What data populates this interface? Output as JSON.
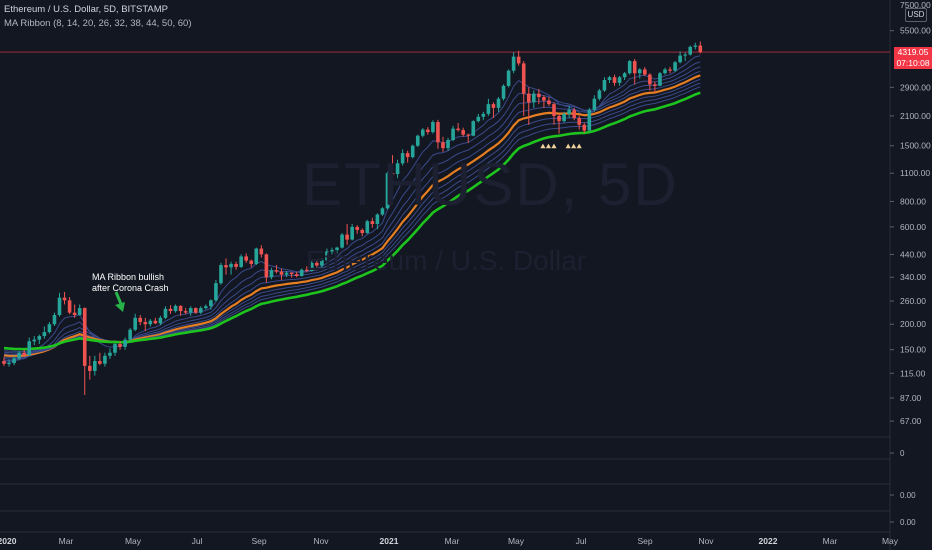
{
  "header": {
    "symbol_line": "Ethereum / U.S. Dollar, 5D, BITSTAMP",
    "indicator_line": "MA Ribbon (8, 14, 20, 26, 32, 38, 44, 50, 60)"
  },
  "currency": "USD",
  "watermark": {
    "ticker": "ETHUSD, 5D",
    "name": "Ethereum / U.S. Dollar"
  },
  "annotation": {
    "line1": "MA Ribbon bullish",
    "line2": "after Corona Crash"
  },
  "last_price": {
    "value": "4319.05",
    "countdown": "07:10:08"
  },
  "colors": {
    "background": "#131722",
    "up": "#26a69a",
    "down": "#ef5350",
    "ribbon_thin": "#3a4a8a",
    "ribbon_orange": "#e67e22",
    "ribbon_green": "#1ec41e",
    "signal_marker": "#f0d39a"
  },
  "chart_data": {
    "type": "candlestick",
    "y_scale": "log",
    "ylim": [
      56,
      7600
    ],
    "y_ticks": [
      "5500.00",
      "4319.05",
      "2900.00",
      "2100.00",
      "1500.00",
      "1100.00",
      "800.00",
      "600.00",
      "440.00",
      "340.00",
      "260.00",
      "200.00",
      "150.00",
      "115.00",
      "87.00",
      "67.00"
    ],
    "y_top_label": "7500.00",
    "x_ticks": [
      "2020",
      "Mar",
      "May",
      "Jul",
      "Sep",
      "Nov",
      "2021",
      "Mar",
      "May",
      "Jul",
      "Sep",
      "Nov",
      "2022",
      "Mar",
      "May"
    ],
    "candles": [
      {
        "date": "2019-12-20",
        "o": 132,
        "h": 138,
        "l": 125,
        "c": 128
      },
      {
        "date": "2019-12-25",
        "o": 128,
        "h": 134,
        "l": 124,
        "c": 129
      },
      {
        "date": "2019-12-30",
        "o": 129,
        "h": 140,
        "l": 126,
        "c": 136
      },
      {
        "date": "2020-01-04",
        "o": 136,
        "h": 148,
        "l": 133,
        "c": 145
      },
      {
        "date": "2020-01-09",
        "o": 145,
        "h": 150,
        "l": 138,
        "c": 141
      },
      {
        "date": "2020-01-14",
        "o": 141,
        "h": 172,
        "l": 140,
        "c": 165
      },
      {
        "date": "2020-01-19",
        "o": 165,
        "h": 175,
        "l": 158,
        "c": 168
      },
      {
        "date": "2020-01-24",
        "o": 168,
        "h": 178,
        "l": 160,
        "c": 175
      },
      {
        "date": "2020-01-29",
        "o": 175,
        "h": 195,
        "l": 170,
        "c": 183
      },
      {
        "date": "2020-02-03",
        "o": 183,
        "h": 205,
        "l": 180,
        "c": 200
      },
      {
        "date": "2020-02-08",
        "o": 200,
        "h": 228,
        "l": 196,
        "c": 222
      },
      {
        "date": "2020-02-13",
        "o": 222,
        "h": 285,
        "l": 218,
        "c": 270
      },
      {
        "date": "2020-02-18",
        "o": 270,
        "h": 288,
        "l": 250,
        "c": 262
      },
      {
        "date": "2020-02-23",
        "o": 262,
        "h": 272,
        "l": 224,
        "c": 228
      },
      {
        "date": "2020-02-28",
        "o": 228,
        "h": 250,
        "l": 215,
        "c": 222
      },
      {
        "date": "2020-03-04",
        "o": 222,
        "h": 250,
        "l": 220,
        "c": 240
      },
      {
        "date": "2020-03-09",
        "o": 240,
        "h": 242,
        "l": 90,
        "c": 125
      },
      {
        "date": "2020-03-14",
        "o": 125,
        "h": 140,
        "l": 107,
        "c": 118
      },
      {
        "date": "2020-03-19",
        "o": 118,
        "h": 140,
        "l": 112,
        "c": 132
      },
      {
        "date": "2020-03-24",
        "o": 132,
        "h": 145,
        "l": 126,
        "c": 128
      },
      {
        "date": "2020-03-29",
        "o": 128,
        "h": 145,
        "l": 124,
        "c": 140
      },
      {
        "date": "2020-04-03",
        "o": 140,
        "h": 152,
        "l": 135,
        "c": 145
      },
      {
        "date": "2020-04-08",
        "o": 145,
        "h": 162,
        "l": 140,
        "c": 160
      },
      {
        "date": "2020-04-13",
        "o": 160,
        "h": 165,
        "l": 150,
        "c": 155
      },
      {
        "date": "2020-04-18",
        "o": 155,
        "h": 172,
        "l": 150,
        "c": 168
      },
      {
        "date": "2020-04-23",
        "o": 168,
        "h": 192,
        "l": 165,
        "c": 188
      },
      {
        "date": "2020-04-28",
        "o": 188,
        "h": 225,
        "l": 185,
        "c": 215
      },
      {
        "date": "2020-05-03",
        "o": 215,
        "h": 222,
        "l": 198,
        "c": 205
      },
      {
        "date": "2020-05-08",
        "o": 205,
        "h": 215,
        "l": 185,
        "c": 200
      },
      {
        "date": "2020-05-13",
        "o": 200,
        "h": 212,
        "l": 195,
        "c": 208
      },
      {
        "date": "2020-05-18",
        "o": 208,
        "h": 215,
        "l": 200,
        "c": 202
      },
      {
        "date": "2020-05-23",
        "o": 202,
        "h": 220,
        "l": 198,
        "c": 215
      },
      {
        "date": "2020-05-28",
        "o": 215,
        "h": 245,
        "l": 212,
        "c": 238
      },
      {
        "date": "2020-06-02",
        "o": 238,
        "h": 248,
        "l": 225,
        "c": 232
      },
      {
        "date": "2020-06-07",
        "o": 232,
        "h": 250,
        "l": 228,
        "c": 246
      },
      {
        "date": "2020-06-12",
        "o": 246,
        "h": 248,
        "l": 220,
        "c": 232
      },
      {
        "date": "2020-06-17",
        "o": 232,
        "h": 240,
        "l": 224,
        "c": 228
      },
      {
        "date": "2020-06-22",
        "o": 228,
        "h": 245,
        "l": 220,
        "c": 240
      },
      {
        "date": "2020-06-27",
        "o": 240,
        "h": 242,
        "l": 225,
        "c": 228
      },
      {
        "date": "2020-07-02",
        "o": 228,
        "h": 245,
        "l": 224,
        "c": 240
      },
      {
        "date": "2020-07-07",
        "o": 240,
        "h": 250,
        "l": 236,
        "c": 245
      },
      {
        "date": "2020-07-12",
        "o": 245,
        "h": 265,
        "l": 236,
        "c": 262
      },
      {
        "date": "2020-07-17",
        "o": 262,
        "h": 330,
        "l": 258,
        "c": 318
      },
      {
        "date": "2020-07-22",
        "o": 318,
        "h": 400,
        "l": 312,
        "c": 390
      },
      {
        "date": "2020-07-27",
        "o": 390,
        "h": 420,
        "l": 350,
        "c": 380
      },
      {
        "date": "2020-08-01",
        "o": 380,
        "h": 405,
        "l": 350,
        "c": 395
      },
      {
        "date": "2020-08-06",
        "o": 395,
        "h": 405,
        "l": 370,
        "c": 382
      },
      {
        "date": "2020-08-11",
        "o": 382,
        "h": 440,
        "l": 378,
        "c": 430
      },
      {
        "date": "2020-08-16",
        "o": 430,
        "h": 445,
        "l": 400,
        "c": 410
      },
      {
        "date": "2020-08-21",
        "o": 410,
        "h": 415,
        "l": 380,
        "c": 395
      },
      {
        "date": "2020-08-26",
        "o": 395,
        "h": 475,
        "l": 390,
        "c": 470
      },
      {
        "date": "2020-08-31",
        "o": 470,
        "h": 488,
        "l": 425,
        "c": 440
      },
      {
        "date": "2020-09-05",
        "o": 440,
        "h": 445,
        "l": 320,
        "c": 340
      },
      {
        "date": "2020-09-10",
        "o": 340,
        "h": 378,
        "l": 332,
        "c": 368
      },
      {
        "date": "2020-09-15",
        "o": 368,
        "h": 390,
        "l": 355,
        "c": 362
      },
      {
        "date": "2020-09-20",
        "o": 362,
        "h": 375,
        "l": 330,
        "c": 350
      },
      {
        "date": "2020-09-25",
        "o": 350,
        "h": 365,
        "l": 340,
        "c": 358
      },
      {
        "date": "2020-09-30",
        "o": 358,
        "h": 360,
        "l": 338,
        "c": 352
      },
      {
        "date": "2020-10-05",
        "o": 352,
        "h": 362,
        "l": 340,
        "c": 345
      },
      {
        "date": "2020-10-10",
        "o": 345,
        "h": 375,
        "l": 342,
        "c": 370
      },
      {
        "date": "2020-10-15",
        "o": 370,
        "h": 385,
        "l": 360,
        "c": 365
      },
      {
        "date": "2020-10-20",
        "o": 365,
        "h": 410,
        "l": 362,
        "c": 400
      },
      {
        "date": "2020-10-25",
        "o": 400,
        "h": 415,
        "l": 380,
        "c": 388
      },
      {
        "date": "2020-10-30",
        "o": 388,
        "h": 420,
        "l": 375,
        "c": 412
      },
      {
        "date": "2020-11-04",
        "o": 412,
        "h": 470,
        "l": 405,
        "c": 455
      },
      {
        "date": "2020-11-09",
        "o": 455,
        "h": 475,
        "l": 440,
        "c": 462
      },
      {
        "date": "2020-11-14",
        "o": 462,
        "h": 480,
        "l": 445,
        "c": 475
      },
      {
        "date": "2020-11-19",
        "o": 475,
        "h": 560,
        "l": 470,
        "c": 550
      },
      {
        "date": "2020-11-24",
        "o": 550,
        "h": 620,
        "l": 490,
        "c": 520
      },
      {
        "date": "2020-11-29",
        "o": 520,
        "h": 620,
        "l": 515,
        "c": 600
      },
      {
        "date": "2020-12-04",
        "o": 600,
        "h": 612,
        "l": 555,
        "c": 580
      },
      {
        "date": "2020-12-09",
        "o": 580,
        "h": 590,
        "l": 540,
        "c": 560
      },
      {
        "date": "2020-12-14",
        "o": 560,
        "h": 650,
        "l": 555,
        "c": 640
      },
      {
        "date": "2020-12-19",
        "o": 640,
        "h": 665,
        "l": 595,
        "c": 620
      },
      {
        "date": "2020-12-24",
        "o": 620,
        "h": 700,
        "l": 585,
        "c": 690
      },
      {
        "date": "2020-12-29",
        "o": 690,
        "h": 750,
        "l": 680,
        "c": 740
      },
      {
        "date": "2021-01-03",
        "o": 740,
        "h": 1120,
        "l": 730,
        "c": 1100
      },
      {
        "date": "2021-01-08",
        "o": 1100,
        "h": 1350,
        "l": 1000,
        "c": 1090
      },
      {
        "date": "2021-01-13",
        "o": 1090,
        "h": 1280,
        "l": 1040,
        "c": 1230
      },
      {
        "date": "2021-01-18",
        "o": 1230,
        "h": 1440,
        "l": 1200,
        "c": 1380
      },
      {
        "date": "2021-01-23",
        "o": 1380,
        "h": 1420,
        "l": 1240,
        "c": 1320
      },
      {
        "date": "2021-01-28",
        "o": 1320,
        "h": 1520,
        "l": 1300,
        "c": 1500
      },
      {
        "date": "2021-02-02",
        "o": 1500,
        "h": 1700,
        "l": 1480,
        "c": 1680
      },
      {
        "date": "2021-02-07",
        "o": 1680,
        "h": 1830,
        "l": 1650,
        "c": 1800
      },
      {
        "date": "2021-02-12",
        "o": 1800,
        "h": 1850,
        "l": 1700,
        "c": 1750
      },
      {
        "date": "2021-02-17",
        "o": 1750,
        "h": 2000,
        "l": 1720,
        "c": 1960
      },
      {
        "date": "2021-02-22",
        "o": 1960,
        "h": 2010,
        "l": 1450,
        "c": 1560
      },
      {
        "date": "2021-02-27",
        "o": 1560,
        "h": 1660,
        "l": 1400,
        "c": 1460
      },
      {
        "date": "2021-03-04",
        "o": 1460,
        "h": 1640,
        "l": 1420,
        "c": 1600
      },
      {
        "date": "2021-03-09",
        "o": 1600,
        "h": 1880,
        "l": 1580,
        "c": 1820
      },
      {
        "date": "2021-03-14",
        "o": 1820,
        "h": 1940,
        "l": 1760,
        "c": 1790
      },
      {
        "date": "2021-03-19",
        "o": 1790,
        "h": 1840,
        "l": 1660,
        "c": 1700
      },
      {
        "date": "2021-03-24",
        "o": 1700,
        "h": 1720,
        "l": 1550,
        "c": 1680
      },
      {
        "date": "2021-03-29",
        "o": 1680,
        "h": 2000,
        "l": 1670,
        "c": 1980
      },
      {
        "date": "2021-04-03",
        "o": 1980,
        "h": 2150,
        "l": 1950,
        "c": 2080
      },
      {
        "date": "2021-04-08",
        "o": 2080,
        "h": 2200,
        "l": 2000,
        "c": 2150
      },
      {
        "date": "2021-04-13",
        "o": 2150,
        "h": 2550,
        "l": 2100,
        "c": 2400
      },
      {
        "date": "2021-04-18",
        "o": 2400,
        "h": 2450,
        "l": 2050,
        "c": 2300
      },
      {
        "date": "2021-04-23",
        "o": 2300,
        "h": 2600,
        "l": 2200,
        "c": 2550
      },
      {
        "date": "2021-04-28",
        "o": 2550,
        "h": 3000,
        "l": 2500,
        "c": 2950
      },
      {
        "date": "2021-05-03",
        "o": 2950,
        "h": 3550,
        "l": 2900,
        "c": 3500
      },
      {
        "date": "2021-05-08",
        "o": 3500,
        "h": 4300,
        "l": 3400,
        "c": 4100
      },
      {
        "date": "2021-05-13",
        "o": 4100,
        "h": 4380,
        "l": 3700,
        "c": 3800
      },
      {
        "date": "2021-05-18",
        "o": 3800,
        "h": 3900,
        "l": 2100,
        "c": 2700
      },
      {
        "date": "2021-05-23",
        "o": 2700,
        "h": 2900,
        "l": 1900,
        "c": 2450
      },
      {
        "date": "2021-05-28",
        "o": 2450,
        "h": 2800,
        "l": 2300,
        "c": 2700
      },
      {
        "date": "2021-06-02",
        "o": 2700,
        "h": 2850,
        "l": 2400,
        "c": 2600
      },
      {
        "date": "2021-06-07",
        "o": 2600,
        "h": 2650,
        "l": 2300,
        "c": 2500
      },
      {
        "date": "2021-06-12",
        "o": 2500,
        "h": 2600,
        "l": 2350,
        "c": 2400
      },
      {
        "date": "2021-06-17",
        "o": 2400,
        "h": 2450,
        "l": 1900,
        "c": 2100
      },
      {
        "date": "2021-06-22",
        "o": 2100,
        "h": 2150,
        "l": 1720,
        "c": 1980
      },
      {
        "date": "2021-06-27",
        "o": 1980,
        "h": 2200,
        "l": 1950,
        "c": 2150
      },
      {
        "date": "2021-07-02",
        "o": 2150,
        "h": 2350,
        "l": 2050,
        "c": 2250
      },
      {
        "date": "2021-07-07",
        "o": 2250,
        "h": 2300,
        "l": 2000,
        "c": 2050
      },
      {
        "date": "2021-07-12",
        "o": 2050,
        "h": 2100,
        "l": 1800,
        "c": 1900
      },
      {
        "date": "2021-07-17",
        "o": 1900,
        "h": 1950,
        "l": 1730,
        "c": 1780
      },
      {
        "date": "2021-07-22",
        "o": 1780,
        "h": 2300,
        "l": 1770,
        "c": 2250
      },
      {
        "date": "2021-07-27",
        "o": 2250,
        "h": 2650,
        "l": 2200,
        "c": 2550
      },
      {
        "date": "2021-08-01",
        "o": 2550,
        "h": 2850,
        "l": 2500,
        "c": 2800
      },
      {
        "date": "2021-08-06",
        "o": 2800,
        "h": 3250,
        "l": 2750,
        "c": 3150
      },
      {
        "date": "2021-08-11",
        "o": 3150,
        "h": 3300,
        "l": 3050,
        "c": 3250
      },
      {
        "date": "2021-08-16",
        "o": 3250,
        "h": 3350,
        "l": 2950,
        "c": 3050
      },
      {
        "date": "2021-08-21",
        "o": 3050,
        "h": 3300,
        "l": 2950,
        "c": 3250
      },
      {
        "date": "2021-08-26",
        "o": 3250,
        "h": 3450,
        "l": 3150,
        "c": 3400
      },
      {
        "date": "2021-08-31",
        "o": 3400,
        "h": 3950,
        "l": 3350,
        "c": 3900
      },
      {
        "date": "2021-09-05",
        "o": 3900,
        "h": 4000,
        "l": 3000,
        "c": 3400
      },
      {
        "date": "2021-09-10",
        "o": 3400,
        "h": 3600,
        "l": 3200,
        "c": 3550
      },
      {
        "date": "2021-09-15",
        "o": 3550,
        "h": 3650,
        "l": 3300,
        "c": 3350
      },
      {
        "date": "2021-09-20",
        "o": 3350,
        "h": 3400,
        "l": 2800,
        "c": 3000
      },
      {
        "date": "2021-09-25",
        "o": 3000,
        "h": 3100,
        "l": 2750,
        "c": 2950
      },
      {
        "date": "2021-09-30",
        "o": 2950,
        "h": 3450,
        "l": 2950,
        "c": 3400
      },
      {
        "date": "2021-10-05",
        "o": 3400,
        "h": 3620,
        "l": 3350,
        "c": 3550
      },
      {
        "date": "2021-10-10",
        "o": 3550,
        "h": 3650,
        "l": 3400,
        "c": 3500
      },
      {
        "date": "2021-10-15",
        "o": 3500,
        "h": 3900,
        "l": 3450,
        "c": 3850
      },
      {
        "date": "2021-10-20",
        "o": 3850,
        "h": 4350,
        "l": 3800,
        "c": 4150
      },
      {
        "date": "2021-10-25",
        "o": 4150,
        "h": 4300,
        "l": 3900,
        "c": 4200
      },
      {
        "date": "2021-10-30",
        "o": 4200,
        "h": 4650,
        "l": 4150,
        "c": 4580
      },
      {
        "date": "2021-11-04",
        "o": 4580,
        "h": 4800,
        "l": 4450,
        "c": 4650
      },
      {
        "date": "2021-11-09",
        "o": 4650,
        "h": 4870,
        "l": 4250,
        "c": 4319.05
      }
    ],
    "ribbon_periods": [
      8,
      14,
      20,
      26,
      32,
      38,
      44,
      50,
      60
    ],
    "ribbon_highlight": {
      "orange": 32,
      "green": 60
    },
    "signal_markers": [
      {
        "date": "2021-06-12",
        "count": 3
      },
      {
        "date": "2021-07-07",
        "count": 3
      }
    ],
    "lower_panes": [
      {
        "label": "0"
      },
      {
        "label": "0.00"
      },
      {
        "label": "0.00"
      }
    ]
  }
}
